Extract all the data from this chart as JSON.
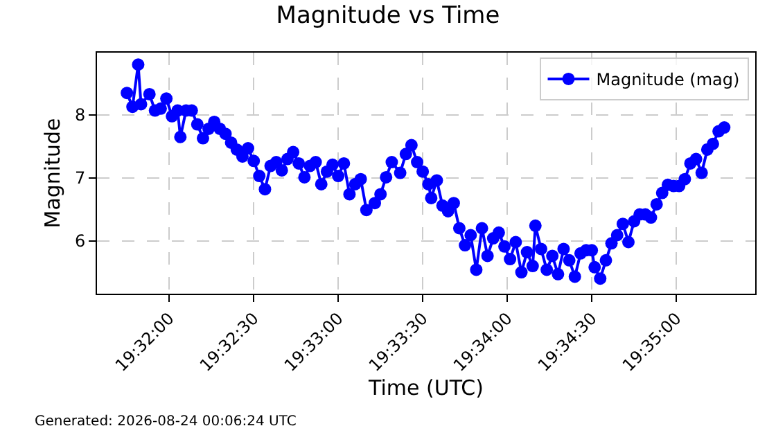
{
  "chart_data": {
    "type": "line",
    "title": "Magnitude vs Time",
    "xlabel": "Time (UTC)",
    "ylabel": "Magnitude",
    "annotations": [
      "Generated: 2026-08-24 00:06:24 UTC"
    ],
    "x": [
      19.52917,
      19.52972,
      19.53028,
      19.53056,
      19.53139,
      19.53194,
      19.5325,
      19.53306,
      19.53361,
      19.53417,
      19.53444,
      19.535,
      19.53556,
      19.53611,
      19.53667,
      19.53722,
      19.53778,
      19.53833,
      19.53889,
      19.53944,
      19.54,
      19.54056,
      19.54111,
      19.54167,
      19.54222,
      19.54278,
      19.54333,
      19.54389,
      19.54444,
      19.545,
      19.54556,
      19.54611,
      19.54667,
      19.54722,
      19.54778,
      19.54833,
      19.54889,
      19.54944,
      19.55,
      19.55056,
      19.55111,
      19.55167,
      19.55222,
      19.55278,
      19.55361,
      19.55417,
      19.55472,
      19.55528,
      19.55611,
      19.55667,
      19.55722,
      19.55778,
      19.55833,
      19.55889,
      19.55917,
      19.55972,
      19.56028,
      19.56083,
      19.56139,
      19.56194,
      19.5625,
      19.56306,
      19.56361,
      19.56417,
      19.56472,
      19.56528,
      19.56583,
      19.56639,
      19.56694,
      19.5675,
      19.56806,
      19.56861,
      19.56917,
      19.56944,
      19.57,
      19.57056,
      19.57111,
      19.57167,
      19.57222,
      19.57278,
      19.57333,
      19.57389,
      19.57444,
      19.575,
      19.57528,
      19.57583,
      19.57639,
      19.57694,
      19.5775,
      19.57806,
      19.57861,
      19.57917,
      19.57972,
      19.58028,
      19.58083,
      19.58139,
      19.58194,
      19.5825,
      19.58306,
      19.58361,
      19.58417,
      19.58472,
      19.58528,
      19.58583,
      19.58639,
      19.58694,
      19.5875,
      19.58806
    ],
    "series": [
      {
        "name": "Magnitude (mag)",
        "color": "#0000ff",
        "values": [
          8.35,
          8.13,
          8.8,
          8.17,
          8.33,
          8.07,
          8.1,
          8.26,
          7.98,
          8.07,
          7.65,
          8.07,
          8.07,
          7.85,
          7.63,
          7.78,
          7.89,
          7.78,
          7.7,
          7.56,
          7.45,
          7.34,
          7.47,
          7.27,
          7.03,
          6.82,
          7.19,
          7.25,
          7.12,
          7.3,
          7.41,
          7.23,
          7.01,
          7.19,
          7.25,
          6.9,
          7.1,
          7.21,
          7.03,
          7.23,
          6.74,
          6.9,
          6.98,
          6.49,
          6.6,
          6.74,
          7.01,
          7.25,
          7.08,
          7.38,
          7.52,
          7.25,
          7.1,
          6.9,
          6.68,
          6.96,
          6.56,
          6.47,
          6.6,
          6.2,
          5.93,
          6.09,
          5.54,
          6.2,
          5.76,
          6.04,
          6.13,
          5.91,
          5.71,
          5.98,
          5.5,
          5.82,
          5.6,
          6.24,
          5.87,
          5.54,
          5.76,
          5.47,
          5.87,
          5.69,
          5.43,
          5.8,
          5.85,
          5.85,
          5.58,
          5.4,
          5.69,
          5.96,
          6.09,
          6.27,
          5.98,
          6.31,
          6.42,
          6.42,
          6.37,
          6.58,
          6.76,
          6.89,
          6.87,
          6.87,
          6.98,
          7.23,
          7.3,
          7.08,
          7.45,
          7.54,
          7.74,
          7.8
        ]
      }
    ],
    "xlim": [
      19.52622,
      19.59111
    ],
    "xticks": [
      {
        "value": 19.533333,
        "label": "19:32:00"
      },
      {
        "value": 19.541667,
        "label": "19:32:30"
      },
      {
        "value": 19.55,
        "label": "19:33:00"
      },
      {
        "value": 19.558333,
        "label": "19:33:30"
      },
      {
        "value": 19.566667,
        "label": "19:34:00"
      },
      {
        "value": 19.575,
        "label": "19:34:30"
      },
      {
        "value": 19.583333,
        "label": "19:35:00"
      }
    ],
    "ylim": [
      5.16,
      8.99
    ],
    "yticks": [
      6,
      7,
      8
    ],
    "grid": true,
    "legend": "top right",
    "marker": "circle",
    "line_style": "solid"
  }
}
